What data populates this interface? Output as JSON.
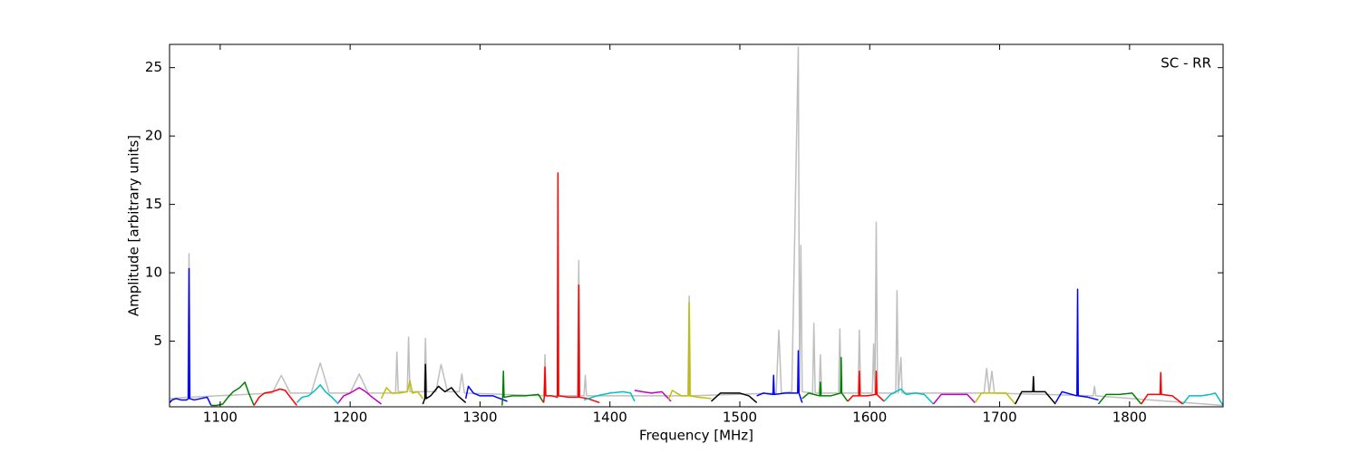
{
  "chart_data": {
    "type": "line",
    "xlabel": "Frequency [MHz]",
    "ylabel": "Amplitude [arbitrary units]",
    "annotation": "SC - RR",
    "xlim": [
      1061,
      1872
    ],
    "ylim": [
      0.2,
      26.7
    ],
    "xticks": [
      1100,
      1200,
      1300,
      1400,
      1500,
      1600,
      1700,
      1800
    ],
    "yticks": [
      5,
      10,
      15,
      20,
      25
    ],
    "series": [
      {
        "color": "#bfbfbf",
        "x": [
          1061,
          1075,
          1076,
          1077,
          1140,
          1147,
          1154,
          1170,
          1177,
          1184,
          1200,
          1207,
          1214,
          1235,
          1236,
          1237,
          1244,
          1245,
          1246,
          1257,
          1258,
          1259,
          1266,
          1270,
          1275,
          1284,
          1286,
          1288,
          1349,
          1350,
          1351,
          1375,
          1376,
          1377,
          1380,
          1381,
          1382,
          1460,
          1461,
          1462,
          1528,
          1530,
          1532,
          1540,
          1545,
          1546,
          1547,
          1548,
          1556,
          1557,
          1558,
          1561,
          1562,
          1563,
          1576,
          1577,
          1578,
          1591,
          1592,
          1593,
          1602,
          1603,
          1604,
          1605,
          1606,
          1620,
          1621,
          1622,
          1624,
          1625,
          1688,
          1690,
          1692,
          1694,
          1696,
          1772,
          1773,
          1774,
          1872
        ],
        "values": [
          0.8,
          0.9,
          11.4,
          0.9,
          1.2,
          2.5,
          1.2,
          1.2,
          3.4,
          1.2,
          1.2,
          2.6,
          1.2,
          1.2,
          4.2,
          1.3,
          1.3,
          5.3,
          1.3,
          1.3,
          5.2,
          1.3,
          1.3,
          3.3,
          1.3,
          1.3,
          2.6,
          1.2,
          1.0,
          4.0,
          1.0,
          1.0,
          10.9,
          1.0,
          1.0,
          2.5,
          1.0,
          1.0,
          8.3,
          1.0,
          1.2,
          5.8,
          1.2,
          1.3,
          26.5,
          1.3,
          12.0,
          1.3,
          1.2,
          6.3,
          1.2,
          1.2,
          4.0,
          1.2,
          1.2,
          5.9,
          1.2,
          1.2,
          5.8,
          1.2,
          1.2,
          4.8,
          1.2,
          13.7,
          1.2,
          1.2,
          8.7,
          1.2,
          3.8,
          1.2,
          1.2,
          3.0,
          1.2,
          2.8,
          1.2,
          1.0,
          1.7,
          1.0,
          0.3
        ]
      },
      {
        "color": "#0000ff",
        "x": [
          1061,
          1063,
          1066,
          1070,
          1074,
          1075.5,
          1076,
          1076.5,
          1080,
          1085,
          1090,
          1093
        ],
        "values": [
          0.5,
          0.7,
          0.8,
          0.7,
          0.7,
          0.8,
          10.3,
          0.8,
          0.7,
          0.8,
          0.9,
          0.3
        ]
      },
      {
        "color": "#008000",
        "x": [
          1093,
          1097,
          1102,
          1106,
          1110,
          1115,
          1119,
          1122,
          1126
        ],
        "values": [
          0.3,
          0.3,
          0.4,
          0.9,
          1.3,
          1.6,
          2.0,
          1.2,
          0.3
        ]
      },
      {
        "color": "#ff0000",
        "x": [
          1126,
          1130,
          1134,
          1140,
          1146,
          1150,
          1154,
          1159
        ],
        "values": [
          0.3,
          0.9,
          1.2,
          1.3,
          1.5,
          1.4,
          0.9,
          0.3
        ]
      },
      {
        "color": "#00bfbf",
        "x": [
          1159,
          1163,
          1168,
          1173,
          1177,
          1181,
          1186,
          1191
        ],
        "values": [
          0.5,
          0.9,
          1.0,
          1.4,
          1.8,
          1.3,
          0.9,
          0.4
        ]
      },
      {
        "color": "#bf00bf",
        "x": [
          1191,
          1195,
          1200,
          1207,
          1212,
          1217,
          1224
        ],
        "values": [
          0.5,
          1.0,
          1.2,
          1.6,
          1.3,
          0.9,
          0.4
        ]
      },
      {
        "color": "#bfbf00",
        "x": [
          1224,
          1228,
          1232,
          1238,
          1244,
          1246,
          1248,
          1252,
          1256
        ],
        "values": [
          0.8,
          1.6,
          1.2,
          1.2,
          1.3,
          2.1,
          1.2,
          1.3,
          0.8
        ]
      },
      {
        "color": "#000000",
        "x": [
          1256,
          1257.5,
          1258,
          1258.5,
          1262,
          1268,
          1273,
          1278,
          1283,
          1289
        ],
        "values": [
          0.4,
          0.8,
          3.3,
          0.8,
          1.0,
          1.7,
          1.3,
          1.6,
          1.0,
          0.5
        ]
      },
      {
        "color": "#0000ff",
        "x": [
          1289,
          1291,
          1295,
          1300,
          1310,
          1321
        ],
        "values": [
          0.8,
          1.7,
          1.2,
          1.0,
          1.0,
          0.6
        ]
      },
      {
        "color": "#008000",
        "x": [
          1317,
          1317.5,
          1318,
          1318.5,
          1325,
          1335,
          1345,
          1349
        ],
        "values": [
          0.3,
          1.0,
          2.8,
          0.9,
          1.0,
          1.0,
          1.1,
          0.5
        ]
      },
      {
        "color": "#ff0000",
        "x": [
          1349,
          1349.5,
          1350,
          1350.5,
          1355,
          1359.5,
          1360,
          1360.5,
          1368,
          1375.5,
          1376,
          1376.5,
          1383,
          1392
        ],
        "values": [
          0.5,
          1.0,
          3.1,
          1.0,
          1.0,
          0.9,
          17.3,
          1.0,
          0.9,
          0.9,
          9.1,
          0.9,
          0.8,
          0.5
        ]
      },
      {
        "color": "#00bfbf",
        "x": [
          1380,
          1390,
          1400,
          1410,
          1416,
          1419
        ],
        "values": [
          0.7,
          1.0,
          1.2,
          1.3,
          1.2,
          0.6
        ]
      },
      {
        "color": "#bf00bf",
        "x": [
          1419,
          1425,
          1432,
          1440,
          1447
        ],
        "values": [
          1.4,
          1.3,
          1.2,
          1.3,
          0.6
        ]
      },
      {
        "color": "#bfbf00",
        "x": [
          1445,
          1448,
          1455,
          1460.5,
          1461,
          1461.5,
          1468,
          1478
        ],
        "values": [
          0.7,
          1.4,
          1.0,
          1.0,
          7.8,
          1.0,
          0.9,
          0.8
        ]
      },
      {
        "color": "#000000",
        "x": [
          1478,
          1485,
          1492,
          1500,
          1507,
          1513
        ],
        "values": [
          0.6,
          1.2,
          1.2,
          1.2,
          1.0,
          0.5
        ]
      },
      {
        "color": "#0000ff",
        "x": [
          1513,
          1518,
          1525.5,
          1526,
          1526.5,
          1535,
          1544.5,
          1545,
          1545.5,
          1548
        ],
        "values": [
          1.0,
          1.2,
          1.1,
          2.5,
          1.1,
          1.2,
          1.2,
          4.3,
          1.2,
          0.5
        ]
      },
      {
        "color": "#008000",
        "x": [
          1548,
          1553,
          1561.5,
          1562,
          1562.5,
          1570,
          1577.5,
          1578,
          1578.5,
          1583
        ],
        "values": [
          0.8,
          1.2,
          1.0,
          2.0,
          1.0,
          1.0,
          1.2,
          3.8,
          1.2,
          0.6
        ]
      },
      {
        "color": "#ff0000",
        "x": [
          1583,
          1587,
          1591.5,
          1592,
          1592.5,
          1598,
          1604.5,
          1605,
          1605.5,
          1611
        ],
        "values": [
          0.6,
          1.0,
          1.0,
          2.8,
          1.0,
          1.0,
          1.1,
          2.8,
          1.1,
          0.6
        ]
      },
      {
        "color": "#00bfbf",
        "x": [
          1611,
          1616,
          1624,
          1628,
          1635,
          1642,
          1649
        ],
        "values": [
          0.6,
          1.1,
          1.5,
          1.1,
          1.2,
          1.1,
          0.4
        ]
      },
      {
        "color": "#bf00bf",
        "x": [
          1649,
          1655,
          1665,
          1675,
          1681
        ],
        "values": [
          0.4,
          1.1,
          1.1,
          1.1,
          0.5
        ]
      },
      {
        "color": "#bfbf00",
        "x": [
          1681,
          1686,
          1695,
          1705,
          1712
        ],
        "values": [
          0.5,
          1.2,
          1.2,
          1.2,
          0.4
        ]
      },
      {
        "color": "#000000",
        "x": [
          1712,
          1717,
          1725.5,
          1726,
          1726.5,
          1735,
          1743
        ],
        "values": [
          0.4,
          1.3,
          1.3,
          2.4,
          1.3,
          1.3,
          0.4
        ]
      },
      {
        "color": "#0000ff",
        "x": [
          1743,
          1748,
          1759.5,
          1760,
          1760.5,
          1768,
          1776
        ],
        "values": [
          0.5,
          1.3,
          1.0,
          8.8,
          1.0,
          0.9,
          0.7
        ]
      },
      {
        "color": "#008000",
        "x": [
          1776,
          1782,
          1792,
          1802,
          1809
        ],
        "values": [
          0.4,
          1.1,
          1.1,
          1.2,
          0.4
        ]
      },
      {
        "color": "#ff0000",
        "x": [
          1809,
          1814,
          1823.5,
          1824,
          1824.5,
          1833,
          1841
        ],
        "values": [
          0.4,
          1.1,
          1.1,
          2.7,
          1.1,
          1.0,
          0.4
        ]
      },
      {
        "color": "#00bfbf",
        "x": [
          1841,
          1846,
          1855,
          1862,
          1866,
          1872
        ],
        "values": [
          0.4,
          1.0,
          1.0,
          1.1,
          1.2,
          0.3
        ]
      }
    ]
  }
}
